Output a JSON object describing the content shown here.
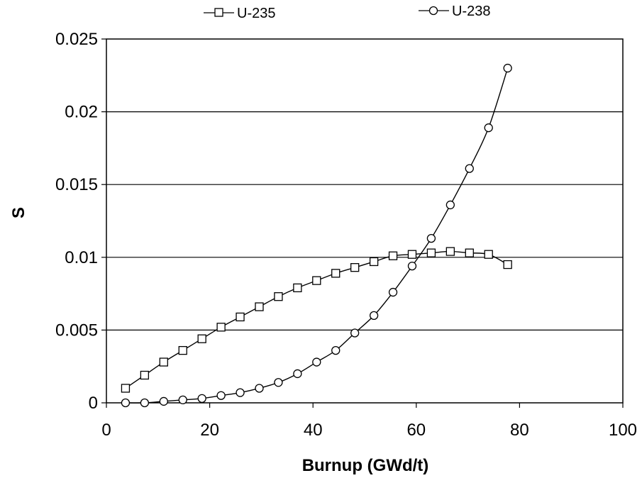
{
  "chart_data": {
    "type": "line",
    "xlabel": "Burnup (GWd/t)",
    "ylabel": "S",
    "xlim": [
      0,
      100
    ],
    "ylim": [
      0,
      0.025
    ],
    "x_ticks": [
      "0",
      "20",
      "40",
      "60",
      "80",
      "100"
    ],
    "y_ticks": [
      "0",
      "0.005",
      "0.01",
      "0.015",
      "0.02",
      "0.025"
    ],
    "grid": "horizontal",
    "legend_position": "top",
    "series": [
      {
        "name": "U-235",
        "marker": "square",
        "points": [
          [
            3.7,
            0.001
          ],
          [
            7.4,
            0.0019
          ],
          [
            11.1,
            0.0028
          ],
          [
            14.8,
            0.0036
          ],
          [
            18.5,
            0.0044
          ],
          [
            22.2,
            0.0052
          ],
          [
            25.9,
            0.0059
          ],
          [
            29.6,
            0.0066
          ],
          [
            33.3,
            0.0073
          ],
          [
            37.0,
            0.0079
          ],
          [
            40.7,
            0.0084
          ],
          [
            44.4,
            0.0089
          ],
          [
            48.1,
            0.0093
          ],
          [
            51.8,
            0.0097
          ],
          [
            55.5,
            0.0101
          ],
          [
            59.2,
            0.0102
          ],
          [
            62.9,
            0.0103
          ],
          [
            66.6,
            0.0104
          ],
          [
            70.3,
            0.0103
          ],
          [
            74.0,
            0.0102
          ],
          [
            77.7,
            0.0095
          ]
        ]
      },
      {
        "name": "U-238",
        "marker": "circle",
        "points": [
          [
            3.7,
            0.0
          ],
          [
            7.4,
            0.0
          ],
          [
            11.1,
            0.0001
          ],
          [
            14.8,
            0.0002
          ],
          [
            18.5,
            0.0003
          ],
          [
            22.2,
            0.0005
          ],
          [
            25.9,
            0.0007
          ],
          [
            29.6,
            0.001
          ],
          [
            33.3,
            0.0014
          ],
          [
            37.0,
            0.002
          ],
          [
            40.7,
            0.0028
          ],
          [
            44.4,
            0.0036
          ],
          [
            48.1,
            0.0048
          ],
          [
            51.8,
            0.006
          ],
          [
            55.5,
            0.0076
          ],
          [
            59.2,
            0.0094
          ],
          [
            62.9,
            0.0113
          ],
          [
            66.6,
            0.0136
          ],
          [
            70.3,
            0.0161
          ],
          [
            74.0,
            0.0189
          ],
          [
            77.7,
            0.023
          ]
        ]
      }
    ]
  }
}
